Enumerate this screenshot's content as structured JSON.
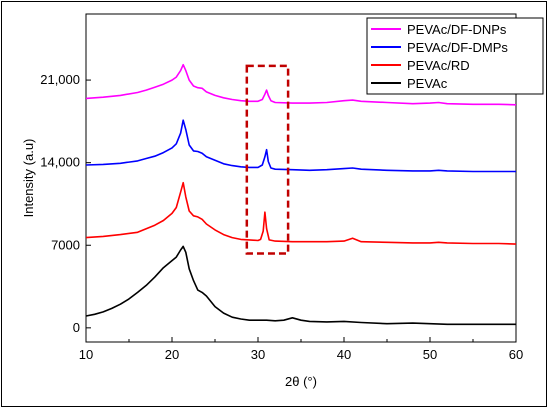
{
  "chart_data": {
    "type": "line",
    "title": "",
    "xlabel": "2θ (°)",
    "ylabel": "Intensity (a.u)",
    "xlim": [
      10,
      60
    ],
    "ylim": [
      -1200,
      26600
    ],
    "xticks": [
      10,
      20,
      30,
      40,
      50,
      60
    ],
    "yticks": [
      0,
      7000,
      14000,
      21000
    ],
    "ytick_labels": [
      "0",
      "7000",
      "14,000",
      "21,000"
    ],
    "grid": false,
    "legend_position": "top-right",
    "annotations": [
      {
        "type": "dashed-rectangle",
        "color": "#c00000",
        "x_range": [
          28.7,
          33.5
        ],
        "y_range": [
          6300,
          22200
        ]
      }
    ],
    "series": [
      {
        "name": "PEVAc/DF-DNPs",
        "color": "#ff00ff",
        "x": [
          10,
          12,
          14,
          16,
          17,
          18,
          19,
          20,
          20.5,
          21,
          21.3,
          21.6,
          22,
          22.5,
          23,
          23.5,
          24,
          25,
          26,
          27,
          28,
          29,
          30,
          30.5,
          30.8,
          31,
          31.2,
          31.5,
          32,
          34,
          36,
          38,
          40,
          41,
          42,
          45,
          48,
          50,
          51,
          52,
          55,
          58,
          60
        ],
        "y": [
          19450,
          19550,
          19700,
          19950,
          20150,
          20400,
          20650,
          21000,
          21250,
          21800,
          22300,
          21800,
          21000,
          20500,
          20350,
          20300,
          20000,
          19700,
          19500,
          19350,
          19250,
          19200,
          19200,
          19350,
          19800,
          20150,
          19700,
          19250,
          19100,
          19050,
          19050,
          19100,
          19250,
          19300,
          19200,
          19100,
          19000,
          19050,
          19100,
          19000,
          18950,
          18950,
          18900
        ]
      },
      {
        "name": "PEVAc/DF-DMPs",
        "color": "#0000ff",
        "x": [
          10,
          12,
          14,
          16,
          17,
          18,
          19,
          20,
          20.5,
          21,
          21.3,
          21.6,
          22,
          22.5,
          23,
          23.5,
          24,
          25,
          26,
          27,
          28,
          29,
          30,
          30.5,
          30.8,
          31,
          31.2,
          31.5,
          32,
          34,
          36,
          38,
          40,
          41,
          42,
          45,
          48,
          50,
          51,
          52,
          55,
          58,
          60
        ],
        "y": [
          13800,
          13850,
          13950,
          14150,
          14350,
          14550,
          14850,
          15250,
          15600,
          16500,
          17600,
          16800,
          15500,
          15000,
          14950,
          14800,
          14500,
          14200,
          13900,
          13750,
          13650,
          13600,
          13600,
          13800,
          14500,
          15100,
          14100,
          13550,
          13450,
          13400,
          13350,
          13400,
          13500,
          13550,
          13450,
          13350,
          13300,
          13300,
          13350,
          13300,
          13250,
          13250,
          13250
        ]
      },
      {
        "name": "PEVAc/RD",
        "color": "#ff0000",
        "x": [
          10,
          12,
          14,
          16,
          17,
          18,
          19,
          20,
          20.5,
          21,
          21.3,
          21.6,
          22,
          22.5,
          23,
          23.5,
          24,
          25,
          26,
          27,
          28,
          29,
          30,
          30.3,
          30.6,
          30.8,
          31,
          31.3,
          32,
          34,
          36,
          38,
          40,
          41,
          42,
          45,
          48,
          50,
          51,
          52,
          55,
          58,
          60
        ],
        "y": [
          7650,
          7750,
          7900,
          8100,
          8400,
          8700,
          9100,
          9700,
          10200,
          11500,
          12300,
          11100,
          9900,
          9500,
          9400,
          9200,
          8800,
          8300,
          7900,
          7650,
          7500,
          7450,
          7400,
          7500,
          8200,
          9800,
          8400,
          7450,
          7350,
          7300,
          7300,
          7300,
          7350,
          7600,
          7300,
          7250,
          7200,
          7200,
          7250,
          7200,
          7150,
          7150,
          7100
        ]
      },
      {
        "name": "PEVAc",
        "color": "#000000",
        "x": [
          10,
          11,
          12,
          13,
          14,
          15,
          16,
          17,
          18,
          19,
          20,
          20.5,
          21,
          21.3,
          21.6,
          22,
          22.5,
          23,
          23.5,
          24,
          25,
          26,
          27,
          28,
          29,
          30,
          31,
          32,
          33,
          34,
          35,
          36,
          38,
          40,
          42,
          45,
          48,
          50,
          52,
          55,
          58,
          60
        ],
        "y": [
          1000,
          1150,
          1350,
          1650,
          2000,
          2450,
          3000,
          3600,
          4300,
          5100,
          5700,
          6000,
          6600,
          6900,
          6400,
          5000,
          4000,
          3200,
          3000,
          2700,
          1800,
          1250,
          900,
          750,
          650,
          650,
          650,
          600,
          650,
          850,
          650,
          550,
          500,
          550,
          450,
          350,
          400,
          350,
          300,
          300,
          300,
          300
        ]
      }
    ]
  }
}
